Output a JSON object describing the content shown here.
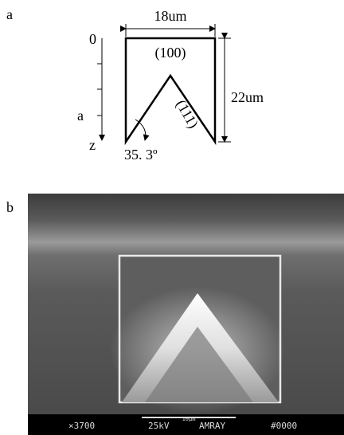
{
  "panels": [
    {
      "label": "a",
      "diagram": {
        "width_label": "18um",
        "depth_origin": "0",
        "top_face": "(100)",
        "height_label": "22um",
        "side_face": "(111)",
        "depth_marker": "a",
        "axis_label": "z",
        "angle_label": "35. 3º"
      }
    },
    {
      "label": "b",
      "sem_bar": {
        "magnification": "×3700",
        "scale": "10μm",
        "voltage": "25kV",
        "instrument": "AMRAY",
        "id": "#0000"
      }
    }
  ]
}
